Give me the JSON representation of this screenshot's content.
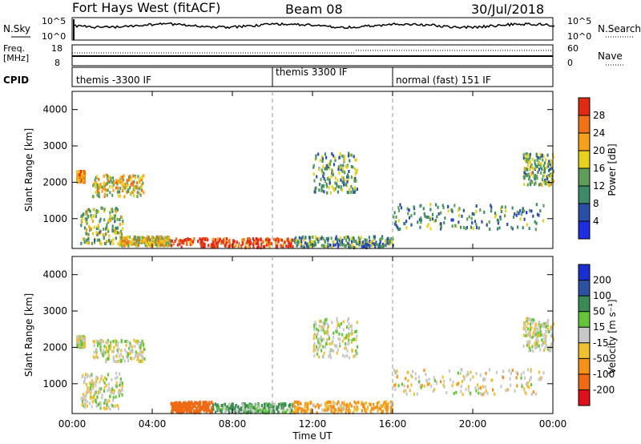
{
  "header": {
    "station": "Fort Hays West (fitACF)",
    "beam": "Beam 08",
    "date": "30/Jul/2018"
  },
  "noise_panel": {
    "left_label": "N.Sky",
    "left_ticks": [
      "10^5",
      "10^0"
    ],
    "right_ticks": [
      "10^5",
      "10^0"
    ],
    "right_label": "N.Search"
  },
  "freq_panel": {
    "left_label_1": "Freq.",
    "left_label_2": "[MHz]",
    "left_ticks": [
      "18",
      "8"
    ],
    "right_ticks": [
      "60",
      "0"
    ],
    "right_label": "Nave"
  },
  "cpid_panel": {
    "label": "CPID",
    "segments": [
      {
        "label": "themis -3300 IF",
        "start_hour": 0
      },
      {
        "label": "themis 3300 IF",
        "start_hour": 10
      },
      {
        "label": "normal (fast) 151 IF",
        "start_hour": 16
      }
    ]
  },
  "x_axis": {
    "label": "Time UT",
    "ticks": [
      "00:00",
      "04:00",
      "08:00",
      "12:00",
      "16:00",
      "20:00",
      "00:00"
    ]
  },
  "power_panel": {
    "ylabel": "Slant Range [km]",
    "yticks": [
      "1000",
      "2000",
      "3000",
      "4000"
    ],
    "colorbar_label": "Power [dB]",
    "colorbar_ticks": [
      "4",
      "8",
      "12",
      "16",
      "20",
      "24",
      "28"
    ]
  },
  "velocity_panel": {
    "ylabel": "Slant Range [km]",
    "yticks": [
      "1000",
      "2000",
      "3000",
      "4000"
    ],
    "colorbar_label": "Velocity [m s⁻¹]",
    "colorbar_ticks": [
      "200",
      "100",
      "50",
      "15",
      "-15",
      "-50",
      "-100",
      "-200"
    ]
  },
  "colors": {
    "power_scale": [
      "#1f2de0",
      "#2a4fa6",
      "#3c8a67",
      "#5e9e5a",
      "#e6d020",
      "#f5a11b",
      "#f07218",
      "#e02a14"
    ],
    "velocity_scale": [
      "#1a2fd0",
      "#2d52a0",
      "#3a8a55",
      "#66c43a",
      "#c8c8c8",
      "#f0c030",
      "#f59018",
      "#ef6a14",
      "#e0101a"
    ]
  },
  "chart_data": [
    {
      "type": "heatmap",
      "title": "",
      "xlabel": "Time UT",
      "ylabel": "Slant Range [km]",
      "xlim": [
        0,
        24
      ],
      "ylim": [
        180,
        4500
      ],
      "colorbar": {
        "label": "Power [dB]",
        "range": [
          0,
          30
        ],
        "ticks": [
          4,
          8,
          12,
          16,
          20,
          24,
          28
        ]
      },
      "scatter_regions": [
        {
          "t_start": 0.2,
          "t_end": 0.6,
          "range_start": 2000,
          "range_end": 2300,
          "power_db": 20
        },
        {
          "t_start": 1.0,
          "t_end": 3.6,
          "range_start": 1600,
          "range_end": 2200,
          "power_db": 18
        },
        {
          "t_start": 0.4,
          "t_end": 2.5,
          "range_start": 300,
          "range_end": 1300,
          "power_db": 14
        },
        {
          "t_start": 2.3,
          "t_end": 4.9,
          "range_start": 250,
          "range_end": 500,
          "power_db": 18
        },
        {
          "t_start": 4.9,
          "t_end": 11.0,
          "range_start": 200,
          "range_end": 450,
          "power_db": 28
        },
        {
          "t_start": 11.0,
          "t_end": 16.0,
          "range_start": 200,
          "range_end": 500,
          "power_db": 10
        },
        {
          "t_start": 12.0,
          "t_end": 14.2,
          "range_start": 1700,
          "range_end": 2800,
          "power_db": 12
        },
        {
          "t_start": 16.0,
          "t_end": 23.5,
          "range_start": 700,
          "range_end": 1400,
          "power_db": 10
        },
        {
          "t_start": 22.5,
          "t_end": 24.0,
          "range_start": 1900,
          "range_end": 2800,
          "power_db": 12
        }
      ]
    },
    {
      "type": "heatmap",
      "title": "",
      "xlabel": "Time UT",
      "ylabel": "Slant Range [km]",
      "xlim": [
        0,
        24
      ],
      "ylim": [
        180,
        4500
      ],
      "colorbar": {
        "label": "Velocity [m s⁻¹]",
        "range": [
          -250,
          250
        ],
        "ticks": [
          200,
          100,
          50,
          15,
          -15,
          -50,
          -100,
          -200
        ]
      },
      "scatter_regions": [
        {
          "t_start": 0.2,
          "t_end": 0.6,
          "range_start": 2000,
          "range_end": 2300,
          "velocity": 0
        },
        {
          "t_start": 1.0,
          "t_end": 3.6,
          "range_start": 1600,
          "range_end": 2200,
          "velocity": 0
        },
        {
          "t_start": 0.4,
          "t_end": 2.5,
          "range_start": 300,
          "range_end": 1300,
          "velocity": 0
        },
        {
          "t_start": 4.9,
          "t_end": 7.0,
          "range_start": 200,
          "range_end": 500,
          "velocity": -120
        },
        {
          "t_start": 7.0,
          "t_end": 11.0,
          "range_start": 200,
          "range_end": 450,
          "velocity": 30
        },
        {
          "t_start": 11.0,
          "t_end": 16.0,
          "range_start": 200,
          "range_end": 500,
          "velocity": -40
        },
        {
          "t_start": 12.0,
          "t_end": 14.2,
          "range_start": 1700,
          "range_end": 2800,
          "velocity": 0
        },
        {
          "t_start": 16.0,
          "t_end": 23.5,
          "range_start": 700,
          "range_end": 1400,
          "velocity": -10
        },
        {
          "t_start": 22.5,
          "t_end": 24.0,
          "range_start": 1900,
          "range_end": 2800,
          "velocity": 0
        }
      ]
    }
  ]
}
